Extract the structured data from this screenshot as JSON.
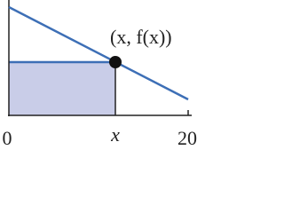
{
  "point_label": "(x, f(x))",
  "axis_labels": {
    "start": "0",
    "point": "x",
    "end": "20"
  }
}
